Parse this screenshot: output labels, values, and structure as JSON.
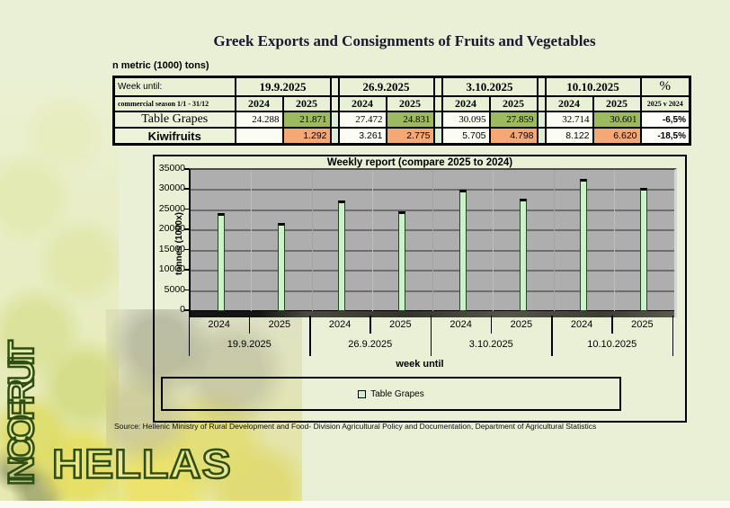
{
  "branding": {
    "vertical": "INCOFRUIT",
    "horizontal": "HELLAS"
  },
  "title": "Greek Exports and Consignments of Fruits and Vegetables",
  "units_note": "n metric (1000) tons)",
  "table": {
    "week_until_label": "Week until:",
    "season_label": "commercial season 1/1 - 31/12",
    "percent_header": "%",
    "percent_subheader": "2025 v 2024",
    "dates": [
      "19.9.2025",
      "26.9.2025",
      "3.10.2025",
      "10.10.2025"
    ],
    "year_headers": [
      "2024",
      "2025"
    ],
    "rows": [
      {
        "label": "Table Grapes",
        "values": [
          [
            "24.288",
            "21.871"
          ],
          [
            "27.472",
            "24.831"
          ],
          [
            "30.095",
            "27.859"
          ],
          [
            "32.714",
            "30.601"
          ]
        ],
        "percent": "-6,5%",
        "highlight_color": "#9CBA5E"
      },
      {
        "label": "Kiwifruits",
        "values": [
          [
            "",
            "1.292"
          ],
          [
            "3.261",
            "2.775"
          ],
          [
            "5.705",
            "4.798"
          ],
          [
            "8.122",
            "6.620"
          ]
        ],
        "percent": "-18,5%",
        "highlight_color": "#F4A876"
      }
    ]
  },
  "chart_data": {
    "type": "bar",
    "title": "Weekly report (compare 2025 to 2024)",
    "xlabel": "week until",
    "ylabel": "tonnes (1000x)",
    "ylim": [
      0,
      35000
    ],
    "ytick_step": 5000,
    "yticks": [
      "35000",
      "30000",
      "25000",
      "20000",
      "15000",
      "10000",
      "5000",
      "0"
    ],
    "categories": [
      "19.9.2025",
      "26.9.2025",
      "3.10.2025",
      "10.10.2025"
    ],
    "bar_labels": [
      "2024",
      "2025"
    ],
    "series": [
      {
        "name": "Table Grapes",
        "values_2024": [
          24288,
          27472,
          30095,
          32714
        ],
        "values_2025": [
          21871,
          24831,
          27859,
          30601
        ]
      }
    ],
    "grouped_values": [
      [
        24288,
        21871
      ],
      [
        27472,
        24831
      ],
      [
        30095,
        27859
      ],
      [
        32714,
        30601
      ]
    ],
    "legend": [
      "Table Grapes"
    ],
    "legend_position": "bottom",
    "grid": true,
    "bar_color": "#CCF2CC",
    "plot_bg": "#AEAEAE"
  },
  "source": "Source: Hellenic Ministry of Rural Development and Food- Division Agricultural Policy and Documentation, Department of Agricultural Statistics"
}
